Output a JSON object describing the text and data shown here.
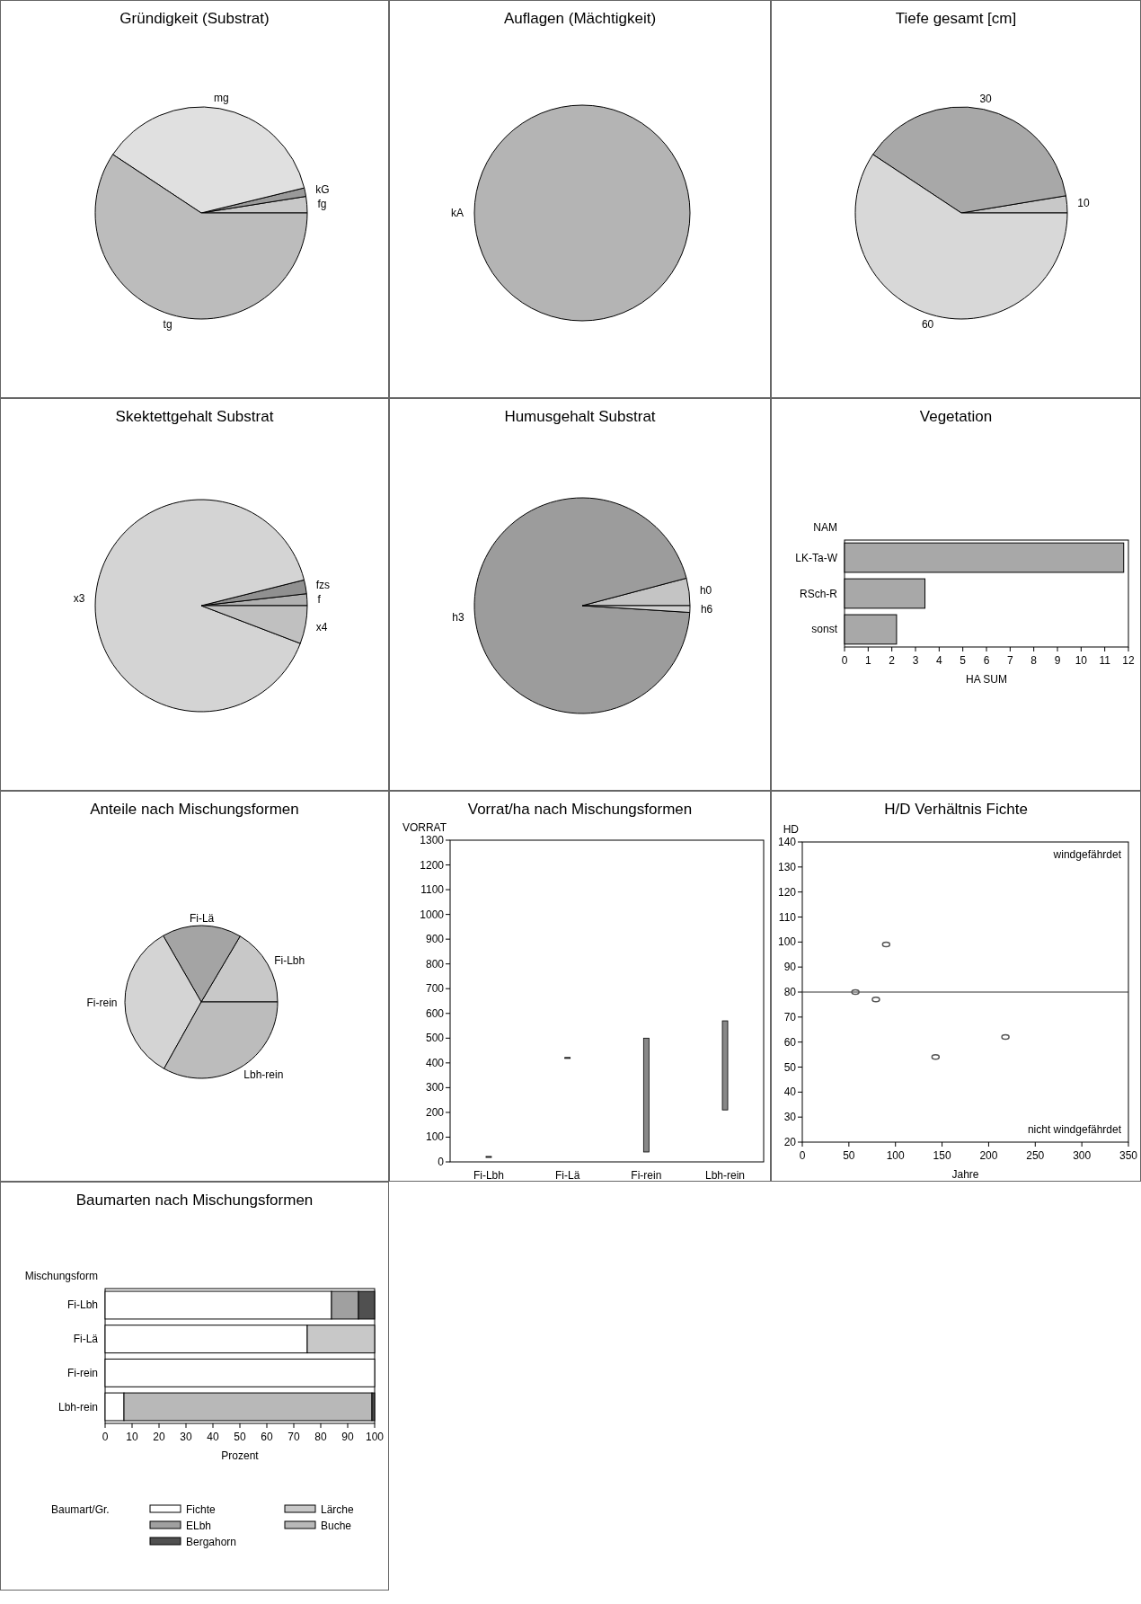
{
  "chart_data": [
    {
      "type": "pie",
      "title": "Gründigkeit (Substrat)",
      "categories": [
        "fg",
        "kG",
        "mg",
        "tg"
      ],
      "values": [
        2.5,
        1.3,
        36.9,
        59.3
      ],
      "colors": [
        "#c8c8c8",
        "#9a9a9a",
        "#e0e0e0",
        "#bcbcbc"
      ]
    },
    {
      "type": "pie",
      "title": "Auflagen (Mächtigkeit)",
      "categories": [
        "kA"
      ],
      "values": [
        100
      ],
      "colors": [
        "#b4b4b4"
      ]
    },
    {
      "type": "pie",
      "title": "Tiefe gesamt [cm]",
      "categories": [
        "10",
        "30",
        "60"
      ],
      "values": [
        2.6,
        38.1,
        59.3
      ],
      "colors": [
        "#c8c8c8",
        "#a8a8a8",
        "#d8d8d8"
      ]
    },
    {
      "type": "pie",
      "title": "Skektettgehalt Substrat",
      "categories": [
        "f",
        "fzs",
        "x3",
        "x4"
      ],
      "values": [
        1.8,
        2.1,
        90.3,
        5.8
      ],
      "colors": [
        "#b0b0b0",
        "#909090",
        "#d4d4d4",
        "#c0c0c0"
      ]
    },
    {
      "type": "pie",
      "title": "Humusgehalt Substrat",
      "categories": [
        "h0",
        "h3",
        "h6"
      ],
      "values": [
        4.1,
        94.9,
        1.0
      ],
      "colors": [
        "#c4c4c4",
        "#9c9c9c",
        "#d0d0d0"
      ]
    },
    {
      "type": "bar",
      "title": "Vegetation",
      "orientation": "horizontal",
      "categories": [
        "LK-Ta-W",
        "RSch-R",
        "sonst"
      ],
      "values": [
        11.8,
        3.4,
        2.2
      ],
      "color": "#a8a8a8",
      "xlim": [
        0,
        12
      ],
      "xticks": [
        0,
        1,
        2,
        3,
        4,
        5,
        6,
        7,
        8,
        9,
        10,
        11,
        12
      ],
      "xlabel": "HA SUM",
      "ylabel": "NAM"
    },
    {
      "type": "pie",
      "title": "Anteile nach Mischungsformen",
      "categories": [
        "Fi-Lbh",
        "Fi-Lä",
        "Fi-rein",
        "Lbh-rein"
      ],
      "values": [
        16.5,
        16.8,
        33.6,
        33.1
      ],
      "colors": [
        "#c8c8c8",
        "#a4a4a4",
        "#d4d4d4",
        "#bcbcbc"
      ]
    },
    {
      "type": "bar",
      "title": "Vorrat/ha nach Mischungsformen",
      "categories": [
        "Fi-Lbh",
        "Fi-Lä",
        "Fi-rein",
        "Lbh-rein"
      ],
      "base": [
        18,
        418,
        40,
        210
      ],
      "values": [
        4,
        4,
        460,
        360
      ],
      "color": "#888888",
      "ylim": [
        0,
        1300
      ],
      "yticks": [
        0,
        100,
        200,
        300,
        400,
        500,
        600,
        700,
        800,
        900,
        1000,
        1100,
        1200,
        1300
      ],
      "ylabel": "VORRAT"
    },
    {
      "type": "scatter",
      "title": "H/D Verhältnis Fichte",
      "x": [
        57,
        79,
        90,
        143,
        218
      ],
      "values": [
        80,
        77,
        99,
        54,
        62
      ],
      "color": "#555555",
      "marker": "circle",
      "xlim": [
        0,
        350
      ],
      "xticks": [
        0,
        50,
        100,
        150,
        200,
        250,
        300,
        350
      ],
      "ylim": [
        20,
        140
      ],
      "yticks": [
        20,
        30,
        40,
        50,
        60,
        70,
        80,
        90,
        100,
        110,
        120,
        130,
        140
      ],
      "xlabel": "Jahre",
      "ylabel": "HD",
      "ref_lines": [
        {
          "axis": "y",
          "value": 80,
          "color": "#333333"
        }
      ],
      "annotations": [
        "windgefährdet",
        "nicht windgefährdet"
      ]
    },
    {
      "type": "bar",
      "title": "Baumarten nach Mischungsformen",
      "orientation": "horizontal",
      "stacked": true,
      "categories": [
        "Fi-Lbh",
        "Fi-Lä",
        "Fi-rein",
        "Lbh-rein"
      ],
      "xlim": [
        0,
        100
      ],
      "xticks": [
        0,
        10,
        20,
        30,
        40,
        50,
        60,
        70,
        80,
        90,
        100
      ],
      "xlabel": "Prozent",
      "ylabel": "Mischungsform",
      "legend": "bottom",
      "legend_title": "Baumart/Gr.",
      "series": [
        {
          "name": "Fichte",
          "color": "#ffffff",
          "values": [
            84,
            75,
            100,
            7
          ]
        },
        {
          "name": "Lärche",
          "color": "#c8c8c8",
          "values": [
            0,
            25,
            0,
            0
          ]
        },
        {
          "name": "ELbh",
          "color": "#a0a0a0",
          "values": [
            10,
            0,
            0,
            0
          ]
        },
        {
          "name": "Buche",
          "color": "#b8b8b8",
          "values": [
            0,
            0,
            0,
            92
          ]
        },
        {
          "name": "Bergahorn",
          "color": "#505050",
          "values": [
            6,
            0,
            0,
            1
          ]
        }
      ]
    }
  ]
}
